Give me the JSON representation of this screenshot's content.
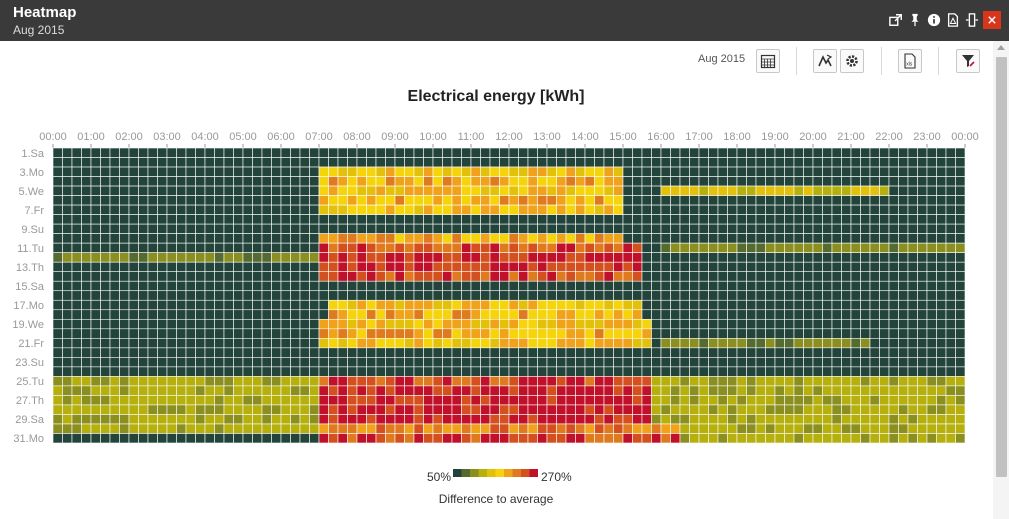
{
  "window": {
    "title": "Heatmap",
    "subtitle": "Aug 2015"
  },
  "titlebar_icons": [
    "external-link-icon",
    "pin-icon",
    "info-icon",
    "pdf-icon",
    "resize-icon",
    "close-icon"
  ],
  "toolbar": {
    "period_label": "Aug 2015",
    "buttons": [
      "calendar-icon",
      "compare-icon",
      "settings-icon",
      "xls-export-icon",
      "filter-icon"
    ]
  },
  "chart_data": {
    "type": "heatmap",
    "title": "Electrical energy [kWh]",
    "x_tick_labels": [
      "00:00",
      "01:00",
      "02:00",
      "03:00",
      "04:00",
      "05:00",
      "06:00",
      "07:00",
      "08:00",
      "09:00",
      "10:00",
      "11:00",
      "12:00",
      "13:00",
      "14:00",
      "15:00",
      "16:00",
      "17:00",
      "18:00",
      "19:00",
      "20:00",
      "21:00",
      "22:00",
      "23:00",
      "00:00"
    ],
    "y_tick_labels": [
      "1.Sa",
      "3.Mo",
      "5.We",
      "7.Fr",
      "9.Su",
      "11.Tu",
      "13.Th",
      "15.Sa",
      "17.Mo",
      "19.We",
      "21.Fr",
      "23.Su",
      "25.Tu",
      "27.Th",
      "29.Sa",
      "31.Mo"
    ],
    "days": 31,
    "slots_per_day": 96,
    "scale": {
      "min_label": "50%",
      "max_label": "270%",
      "title": "Difference to average",
      "colors": [
        "#22443a",
        "#556b2f",
        "#8a8f1f",
        "#b5b00e",
        "#e3c10a",
        "#f5d40b",
        "#f0a21a",
        "#e07a1e",
        "#d4501e",
        "#c0102a"
      ]
    },
    "patterns": [
      {
        "name": "workday-a",
        "days": [
          3,
          4,
          6,
          7,
          10,
          13,
          17,
          18,
          19,
          20,
          21,
          24,
          25,
          26,
          27,
          28,
          31
        ],
        "base": "dark"
      },
      {
        "name": "weekend",
        "days": [
          1,
          2,
          8,
          9,
          15,
          16,
          22,
          23,
          29,
          30
        ],
        "base": "dark"
      }
    ],
    "rows": [
      {
        "day": 1,
        "start": 0,
        "end": 0,
        "level": 0
      },
      {
        "day": 2,
        "start": 0,
        "end": 0,
        "level": 0
      },
      {
        "day": 3,
        "start": 28,
        "end": 60,
        "level": 5
      },
      {
        "day": 4,
        "start": 28,
        "end": 60,
        "level": 6
      },
      {
        "day": 5,
        "start": 28,
        "end": 60,
        "level": 5
      },
      {
        "day": 6,
        "start": 28,
        "end": 60,
        "level": 6
      },
      {
        "day": 7,
        "start": 28,
        "end": 60,
        "level": 5
      },
      {
        "day": 8,
        "start": 0,
        "end": 0,
        "level": 0
      },
      {
        "day": 9,
        "start": 0,
        "end": 0,
        "level": 0
      },
      {
        "day": 10,
        "start": 28,
        "end": 60,
        "level": 6
      },
      {
        "day": 11,
        "start": 28,
        "end": 62,
        "level": 8
      },
      {
        "day": 12,
        "start": 28,
        "end": 62,
        "level": 9
      },
      {
        "day": 13,
        "start": 28,
        "end": 62,
        "level": 9
      },
      {
        "day": 14,
        "start": 28,
        "end": 62,
        "level": 8
      },
      {
        "day": 15,
        "start": 0,
        "end": 0,
        "level": 0
      },
      {
        "day": 16,
        "start": 0,
        "end": 0,
        "level": 0
      },
      {
        "day": 17,
        "start": 29,
        "end": 62,
        "level": 5
      },
      {
        "day": 18,
        "start": 29,
        "end": 62,
        "level": 6
      },
      {
        "day": 19,
        "start": 28,
        "end": 63,
        "level": 5
      },
      {
        "day": 20,
        "start": 28,
        "end": 63,
        "level": 6
      },
      {
        "day": 21,
        "start": 28,
        "end": 63,
        "level": 5
      },
      {
        "day": 22,
        "start": 0,
        "end": 0,
        "level": 0
      },
      {
        "day": 23,
        "start": 0,
        "end": 0,
        "level": 0
      },
      {
        "day": 24,
        "start": 0,
        "end": 0,
        "level": 0
      },
      {
        "day": 25,
        "start": 28,
        "end": 63,
        "level": 8
      },
      {
        "day": 26,
        "start": 28,
        "end": 63,
        "level": 9
      },
      {
        "day": 27,
        "start": 28,
        "end": 63,
        "level": 9
      },
      {
        "day": 28,
        "start": 28,
        "end": 63,
        "level": 9
      },
      {
        "day": 29,
        "start": 28,
        "end": 63,
        "level": 9
      },
      {
        "day": 30,
        "start": 28,
        "end": 66,
        "level": 7
      },
      {
        "day": 31,
        "start": 28,
        "end": 66,
        "level": 8
      }
    ]
  }
}
